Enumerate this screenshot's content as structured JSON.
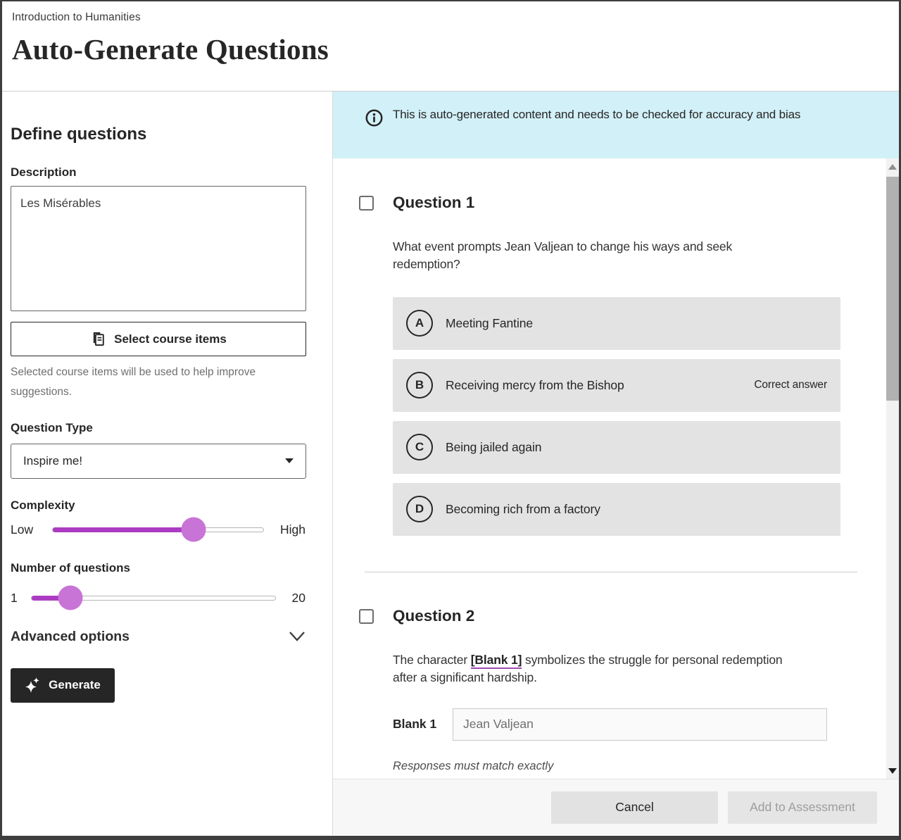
{
  "header": {
    "breadcrumb": "Introduction to Humanities",
    "title": "Auto-Generate Questions"
  },
  "panel": {
    "heading": "Define questions",
    "description_label": "Description",
    "description_value": "Les Misérables",
    "select_course_items_label": "Select course items",
    "helper_text": "Selected course items will be used to help improve suggestions.",
    "question_type_label": "Question Type",
    "question_type_value": "Inspire me!",
    "complexity": {
      "label": "Complexity",
      "min_label": "Low",
      "max_label": "High",
      "percent": 67
    },
    "num_questions": {
      "label": "Number of questions",
      "min_label": "1",
      "max_label": "20",
      "percent": 16
    },
    "advanced_options_label": "Advanced options",
    "generate_label": "Generate"
  },
  "banner": {
    "text": "This is auto-generated content and needs to be checked for accuracy and bias"
  },
  "questions": [
    {
      "title": "Question 1",
      "text": "What event prompts Jean Valjean to change his ways and seek redemption?",
      "options": [
        {
          "letter": "A",
          "label": "Meeting Fantine"
        },
        {
          "letter": "B",
          "label": "Receiving mercy from the Bishop",
          "badge": "Correct answer"
        },
        {
          "letter": "C",
          "label": "Being jailed again"
        },
        {
          "letter": "D",
          "label": "Becoming rich from a factory"
        }
      ]
    },
    {
      "title": "Question 2",
      "text_before": "The character ",
      "blank_token": "[Blank 1]",
      "text_after": " symbolizes the struggle for personal redemption after a significant hardship.",
      "blank_label": "Blank 1",
      "blank_value": "Jean Valjean",
      "note": "Responses must match exactly"
    }
  ],
  "footer": {
    "cancel_label": "Cancel",
    "add_label": "Add to Assessment"
  },
  "colors": {
    "accent_fill": "#ab3cc2",
    "accent_thumb": "#c873d6",
    "banner_bg": "#d2f0f7",
    "option_bg": "#e3e3e3"
  }
}
